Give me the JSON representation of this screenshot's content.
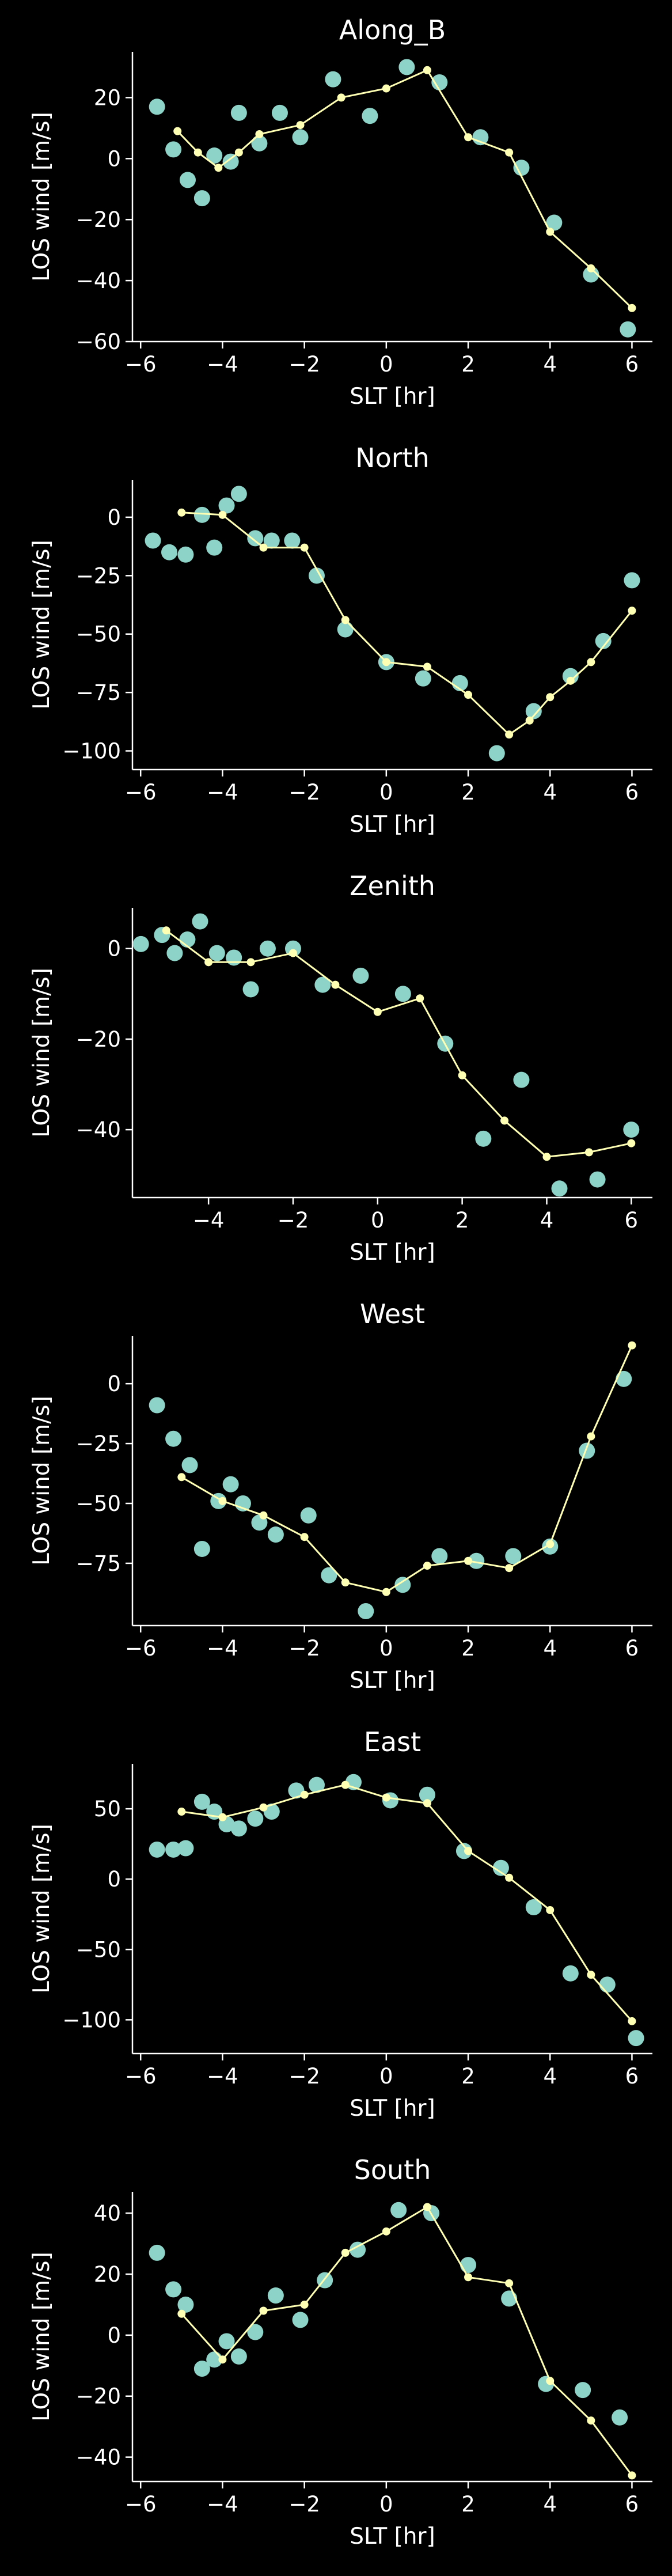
{
  "colors": {
    "background": "#000000",
    "axis": "#ffffff",
    "scatter": "#8dd3c7",
    "line": "#ffffb3"
  },
  "chart_data": [
    {
      "type": "scatter",
      "title": "Along_B",
      "xlabel": "SLT [hr]",
      "ylabel": "LOS wind [m/s]",
      "xlim": [
        -6.2,
        6.5
      ],
      "ylim": [
        -60,
        35
      ],
      "xticks": [
        -6,
        -4,
        -2,
        0,
        2,
        4,
        6
      ],
      "yticks": [
        -60,
        -40,
        -20,
        0,
        20
      ],
      "grid": false,
      "series": [
        {
          "style": "markers",
          "x": [
            -5.6,
            -5.2,
            -4.85,
            -4.5,
            -4.2,
            -3.8,
            -3.6,
            -3.1,
            -2.6,
            -2.1,
            -1.3,
            -0.4,
            0.5,
            1.3,
            2.3,
            3.3,
            4.1,
            5.0,
            5.9
          ],
          "y": [
            17,
            3,
            -7,
            -13,
            1,
            -1,
            15,
            5,
            15,
            7,
            26,
            14,
            30,
            25,
            7,
            -3,
            -21,
            -38,
            -56
          ]
        },
        {
          "style": "line",
          "x": [
            -5.1,
            -4.6,
            -4.1,
            -3.6,
            -3.1,
            -2.1,
            -1.1,
            0.0,
            1.0,
            2.0,
            3.0,
            4.0,
            5.0,
            6.0
          ],
          "y": [
            9,
            2,
            -3,
            2,
            8,
            11,
            20,
            23,
            29,
            7,
            2,
            -24,
            -36,
            -49
          ]
        }
      ]
    },
    {
      "type": "scatter",
      "title": "North",
      "xlabel": "SLT [hr]",
      "ylabel": "LOS wind [m/s]",
      "xlim": [
        -6.2,
        6.5
      ],
      "ylim": [
        -108,
        16
      ],
      "xticks": [
        -6,
        -4,
        -2,
        0,
        2,
        4,
        6
      ],
      "yticks": [
        -100,
        -75,
        -50,
        -25,
        0
      ],
      "grid": false,
      "series": [
        {
          "style": "markers",
          "x": [
            -5.7,
            -5.3,
            -4.9,
            -4.5,
            -4.2,
            -3.9,
            -3.6,
            -3.2,
            -2.8,
            -2.3,
            -1.7,
            -1.0,
            0.0,
            0.9,
            1.8,
            2.7,
            3.6,
            4.5,
            5.3,
            6.0
          ],
          "y": [
            -10,
            -15,
            -16,
            1,
            -13,
            5,
            10,
            -9,
            -10,
            -10,
            -25,
            -48,
            -62,
            -69,
            -71,
            -101,
            -83,
            -68,
            -53,
            -27
          ]
        },
        {
          "style": "line",
          "x": [
            -5.0,
            -4.0,
            -3.0,
            -2.0,
            -1.0,
            0.0,
            1.0,
            2.0,
            3.0,
            3.5,
            4.0,
            4.5,
            5.0,
            6.0
          ],
          "y": [
            2,
            1,
            -13,
            -13,
            -44,
            -62,
            -64,
            -76,
            -93,
            -87,
            -77,
            -70,
            -62,
            -40
          ]
        }
      ]
    },
    {
      "type": "scatter",
      "title": "Zenith",
      "xlabel": "SLT [hr]",
      "ylabel": "LOS wind [m/s]",
      "xlim": [
        -5.8,
        6.5
      ],
      "ylim": [
        -55,
        9
      ],
      "xticks": [
        -4,
        -2,
        0,
        2,
        4,
        6
      ],
      "yticks": [
        -40,
        -20,
        0
      ],
      "grid": false,
      "series": [
        {
          "style": "markers",
          "x": [
            -5.6,
            -5.1,
            -4.8,
            -4.5,
            -4.2,
            -3.8,
            -3.4,
            -3.0,
            -2.6,
            -2.0,
            -1.3,
            -0.4,
            0.6,
            1.6,
            2.5,
            3.4,
            4.3,
            5.2,
            6.0
          ],
          "y": [
            1,
            3,
            -1,
            2,
            6,
            -1,
            -2,
            -9,
            0,
            0,
            -8,
            -6,
            -10,
            -21,
            -42,
            -29,
            -53,
            -51,
            -40
          ]
        },
        {
          "style": "line",
          "x": [
            -5.0,
            -4.0,
            -3.0,
            -2.0,
            -1.0,
            0.0,
            1.0,
            2.0,
            3.0,
            4.0,
            5.0,
            6.0
          ],
          "y": [
            4,
            -3,
            -3,
            -1,
            -8,
            -14,
            -11,
            -28,
            -38,
            -46,
            -45,
            -43
          ]
        }
      ]
    },
    {
      "type": "scatter",
      "title": "West",
      "xlabel": "SLT [hr]",
      "ylabel": "LOS wind [m/s]",
      "xlim": [
        -6.2,
        6.5
      ],
      "ylim": [
        -101,
        20
      ],
      "xticks": [
        -6,
        -4,
        -2,
        0,
        2,
        4,
        6
      ],
      "yticks": [
        -75,
        -50,
        -25,
        0
      ],
      "grid": false,
      "series": [
        {
          "style": "markers",
          "x": [
            -5.6,
            -5.2,
            -4.8,
            -4.5,
            -4.1,
            -3.8,
            -3.5,
            -3.1,
            -2.7,
            -1.9,
            -1.4,
            -0.5,
            0.4,
            1.3,
            2.2,
            3.1,
            4.0,
            4.9,
            5.8
          ],
          "y": [
            -9,
            -23,
            -34,
            -69,
            -49,
            -42,
            -50,
            -58,
            -63,
            -55,
            -80,
            -95,
            -84,
            -72,
            -74,
            -72,
            -68,
            -28,
            2
          ]
        },
        {
          "style": "line",
          "x": [
            -5.0,
            -4.0,
            -3.0,
            -2.0,
            -1.0,
            0.0,
            1.0,
            2.0,
            3.0,
            4.0,
            5.0,
            6.0
          ],
          "y": [
            -39,
            -49,
            -55,
            -64,
            -83,
            -87,
            -76,
            -74,
            -77,
            -67,
            -22,
            16
          ]
        }
      ]
    },
    {
      "type": "scatter",
      "title": "East",
      "xlabel": "SLT [hr]",
      "ylabel": "LOS wind [m/s]",
      "xlim": [
        -6.2,
        6.5
      ],
      "ylim": [
        -124,
        82
      ],
      "xticks": [
        -6,
        -4,
        -2,
        0,
        2,
        4,
        6
      ],
      "yticks": [
        -100,
        -50,
        0,
        50
      ],
      "grid": false,
      "series": [
        {
          "style": "markers",
          "x": [
            -5.6,
            -5.2,
            -4.9,
            -4.5,
            -4.2,
            -3.9,
            -3.6,
            -3.2,
            -2.8,
            -2.2,
            -1.7,
            -0.8,
            0.1,
            1.0,
            1.9,
            2.8,
            3.6,
            4.5,
            5.4,
            6.1
          ],
          "y": [
            21,
            21,
            22,
            55,
            48,
            39,
            36,
            43,
            48,
            63,
            67,
            69,
            56,
            60,
            20,
            8,
            -20,
            -67,
            -75,
            -113
          ]
        },
        {
          "style": "line",
          "x": [
            -5.0,
            -4.0,
            -3.0,
            -2.0,
            -1.0,
            0.0,
            1.0,
            2.0,
            3.0,
            4.0,
            5.0,
            6.0
          ],
          "y": [
            48,
            44,
            51,
            60,
            67,
            58,
            54,
            20,
            1,
            -22,
            -68,
            -101
          ]
        }
      ]
    },
    {
      "type": "scatter",
      "title": "South",
      "xlabel": "SLT [hr]",
      "ylabel": "LOS wind [m/s]",
      "xlim": [
        -6.2,
        6.5
      ],
      "ylim": [
        -48,
        47
      ],
      "xticks": [
        -6,
        -4,
        -2,
        0,
        2,
        4,
        6
      ],
      "yticks": [
        -40,
        -20,
        0,
        20,
        40
      ],
      "grid": false,
      "series": [
        {
          "style": "markers",
          "x": [
            -5.6,
            -5.2,
            -4.9,
            -4.5,
            -4.2,
            -3.9,
            -3.6,
            -3.2,
            -2.7,
            -2.1,
            -1.5,
            -0.7,
            0.3,
            1.1,
            2.0,
            3.0,
            3.9,
            4.8,
            5.7
          ],
          "y": [
            27,
            15,
            10,
            -11,
            -8,
            -2,
            -7,
            1,
            13,
            5,
            18,
            28,
            41,
            40,
            23,
            12,
            -16,
            -18,
            -27
          ]
        },
        {
          "style": "line",
          "x": [
            -5.0,
            -4.0,
            -3.0,
            -2.0,
            -1.0,
            0.0,
            1.0,
            2.0,
            3.0,
            4.0,
            5.0,
            6.0
          ],
          "y": [
            7,
            -8,
            8,
            10,
            27,
            34,
            42,
            19,
            17,
            -15,
            -28,
            -46
          ]
        }
      ]
    }
  ]
}
